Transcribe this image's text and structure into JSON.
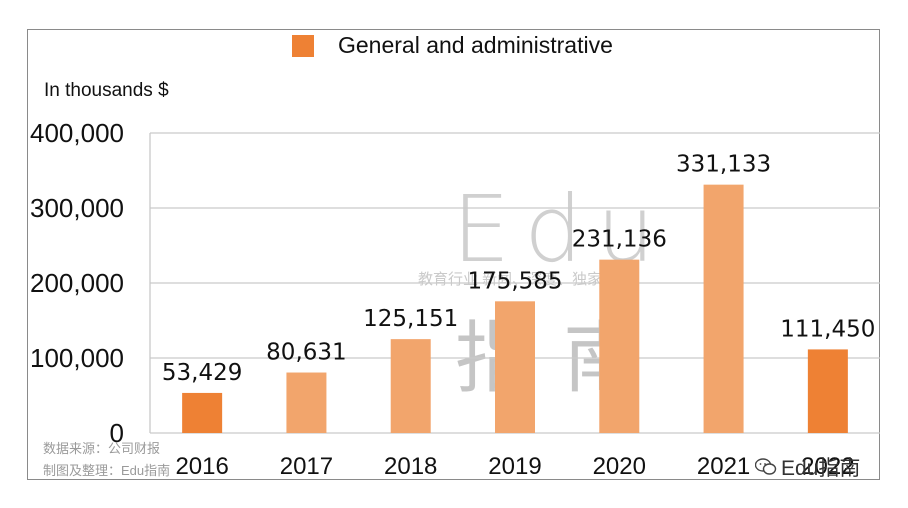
{
  "chart_data": {
    "type": "bar",
    "title": "",
    "legend": [
      "General and administrative"
    ],
    "ylabel": "In thousands $",
    "xlabel": "",
    "categories": [
      "2016",
      "2017",
      "2018",
      "2019",
      "2020",
      "2021",
      "2022"
    ],
    "series": [
      {
        "name": "General and administrative",
        "values": [
          53429,
          80631,
          125151,
          175585,
          231136,
          331133,
          111450
        ]
      }
    ],
    "data_labels": [
      "53,429",
      "80,631",
      "125,151",
      "175,585",
      "231,136",
      "331,133",
      "111,450"
    ],
    "ylim": [
      0,
      400000
    ],
    "yticks": [
      0,
      100000,
      200000,
      300000,
      400000
    ],
    "ytick_labels": [
      "0",
      "100,000",
      "200,000",
      "300,000",
      "400,000"
    ],
    "grid": true,
    "legend_position": "top-center"
  },
  "colors": {
    "highlight_bar": "#ee8134",
    "bar": "#f2a56c",
    "grid": "#c9c9c9"
  },
  "watermark": {
    "latin": "Edu",
    "tagline": "教育行业 新闻、深度、独家",
    "chinese": "指南"
  },
  "source": {
    "line1": "数据来源：公司财报",
    "line2": "制图及整理：Edu指南"
  },
  "wechat": {
    "icon": "wechat-icon",
    "label": "Edu指南"
  }
}
